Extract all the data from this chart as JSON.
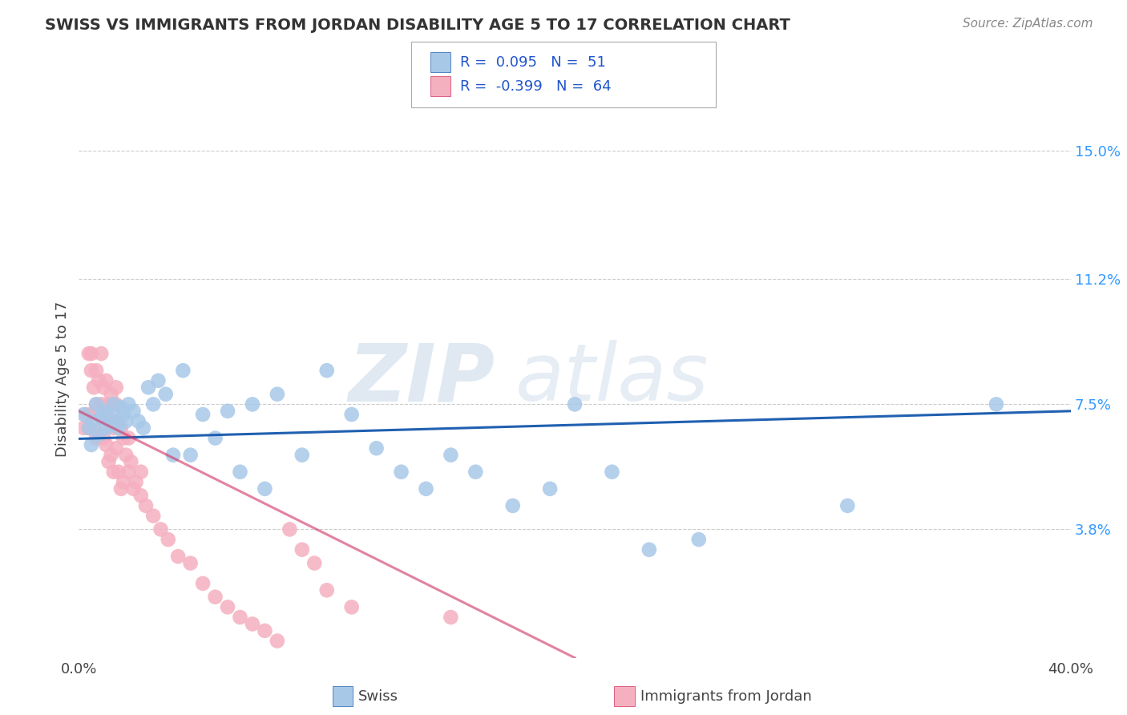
{
  "title": "SWISS VS IMMIGRANTS FROM JORDAN DISABILITY AGE 5 TO 17 CORRELATION CHART",
  "source": "Source: ZipAtlas.com",
  "xlabel_swiss": "Swiss",
  "xlabel_jordan": "Immigrants from Jordan",
  "ylabel": "Disability Age 5 to 17",
  "xlim": [
    0.0,
    0.4
  ],
  "ylim": [
    0.0,
    0.165
  ],
  "xticklabels": [
    "0.0%",
    "40.0%"
  ],
  "ytick_positions": [
    0.038,
    0.075,
    0.112,
    0.15
  ],
  "ytick_labels": [
    "3.8%",
    "7.5%",
    "11.2%",
    "15.0%"
  ],
  "swiss_R": "0.095",
  "swiss_N": "51",
  "jordan_R": "-0.399",
  "jordan_N": "64",
  "swiss_color": "#a8c8e8",
  "jordan_color": "#f5b0c0",
  "swiss_line_color": "#2060b0",
  "jordan_line_color": "#d03060",
  "background_color": "#ffffff",
  "watermark_zip": "ZIP",
  "watermark_atlas": "atlas",
  "swiss_points_x": [
    0.002,
    0.004,
    0.005,
    0.006,
    0.007,
    0.008,
    0.009,
    0.01,
    0.011,
    0.012,
    0.013,
    0.014,
    0.015,
    0.016,
    0.017,
    0.018,
    0.019,
    0.02,
    0.022,
    0.024,
    0.026,
    0.028,
    0.03,
    0.032,
    0.035,
    0.038,
    0.042,
    0.045,
    0.05,
    0.055,
    0.06,
    0.065,
    0.07,
    0.075,
    0.08,
    0.09,
    0.1,
    0.11,
    0.12,
    0.13,
    0.14,
    0.15,
    0.16,
    0.175,
    0.19,
    0.2,
    0.215,
    0.23,
    0.25,
    0.31,
    0.37
  ],
  "swiss_points_y": [
    0.072,
    0.068,
    0.063,
    0.07,
    0.075,
    0.066,
    0.071,
    0.073,
    0.068,
    0.072,
    0.069,
    0.075,
    0.07,
    0.068,
    0.074,
    0.072,
    0.07,
    0.075,
    0.073,
    0.07,
    0.068,
    0.08,
    0.075,
    0.082,
    0.078,
    0.06,
    0.085,
    0.06,
    0.072,
    0.065,
    0.073,
    0.055,
    0.075,
    0.05,
    0.078,
    0.06,
    0.085,
    0.072,
    0.062,
    0.055,
    0.05,
    0.06,
    0.055,
    0.045,
    0.05,
    0.075,
    0.055,
    0.032,
    0.035,
    0.045,
    0.075
  ],
  "jordan_points_x": [
    0.002,
    0.003,
    0.004,
    0.004,
    0.005,
    0.005,
    0.006,
    0.007,
    0.007,
    0.008,
    0.008,
    0.009,
    0.009,
    0.01,
    0.01,
    0.011,
    0.011,
    0.012,
    0.012,
    0.013,
    0.013,
    0.014,
    0.014,
    0.015,
    0.015,
    0.016,
    0.016,
    0.017,
    0.017,
    0.018,
    0.018,
    0.019,
    0.02,
    0.021,
    0.022,
    0.023,
    0.025,
    0.027,
    0.03,
    0.033,
    0.036,
    0.04,
    0.045,
    0.05,
    0.055,
    0.06,
    0.065,
    0.07,
    0.075,
    0.08,
    0.085,
    0.09,
    0.095,
    0.1,
    0.11,
    0.005,
    0.007,
    0.009,
    0.011,
    0.013,
    0.015,
    0.02,
    0.025,
    0.15
  ],
  "jordan_points_y": [
    0.068,
    0.072,
    0.068,
    0.09,
    0.085,
    0.072,
    0.08,
    0.075,
    0.065,
    0.072,
    0.082,
    0.075,
    0.068,
    0.08,
    0.065,
    0.072,
    0.063,
    0.075,
    0.058,
    0.07,
    0.06,
    0.068,
    0.055,
    0.075,
    0.062,
    0.07,
    0.055,
    0.068,
    0.05,
    0.065,
    0.052,
    0.06,
    0.055,
    0.058,
    0.05,
    0.052,
    0.048,
    0.045,
    0.042,
    0.038,
    0.035,
    0.03,
    0.028,
    0.022,
    0.018,
    0.015,
    0.012,
    0.01,
    0.008,
    0.005,
    0.038,
    0.032,
    0.028,
    0.02,
    0.015,
    0.09,
    0.085,
    0.09,
    0.082,
    0.078,
    0.08,
    0.065,
    0.055,
    0.012
  ]
}
